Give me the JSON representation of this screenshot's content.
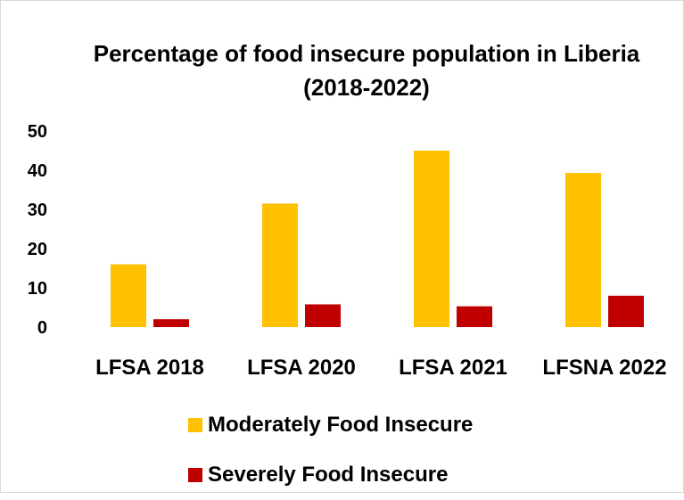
{
  "chart_data": {
    "type": "bar",
    "title": "Percentage of food insecure population in Liberia (2018-2022)",
    "categories": [
      "LFSA 2018",
      "LFSA 2020",
      "LFSA 2021",
      "LFSNA 2022"
    ],
    "series": [
      {
        "name": "Moderately Food Insecure",
        "color": "#ffc000",
        "values": [
          16,
          31.5,
          45,
          39.3
        ]
      },
      {
        "name": "Severely Food Insecure",
        "color": "#c00000",
        "values": [
          2,
          5.8,
          5.3,
          8
        ]
      }
    ],
    "yticks": [
      0,
      10,
      20,
      30,
      40,
      50
    ],
    "ylim": [
      0,
      50
    ],
    "xlabel": "",
    "ylabel": "",
    "grid": false,
    "legend_position": "bottom"
  }
}
